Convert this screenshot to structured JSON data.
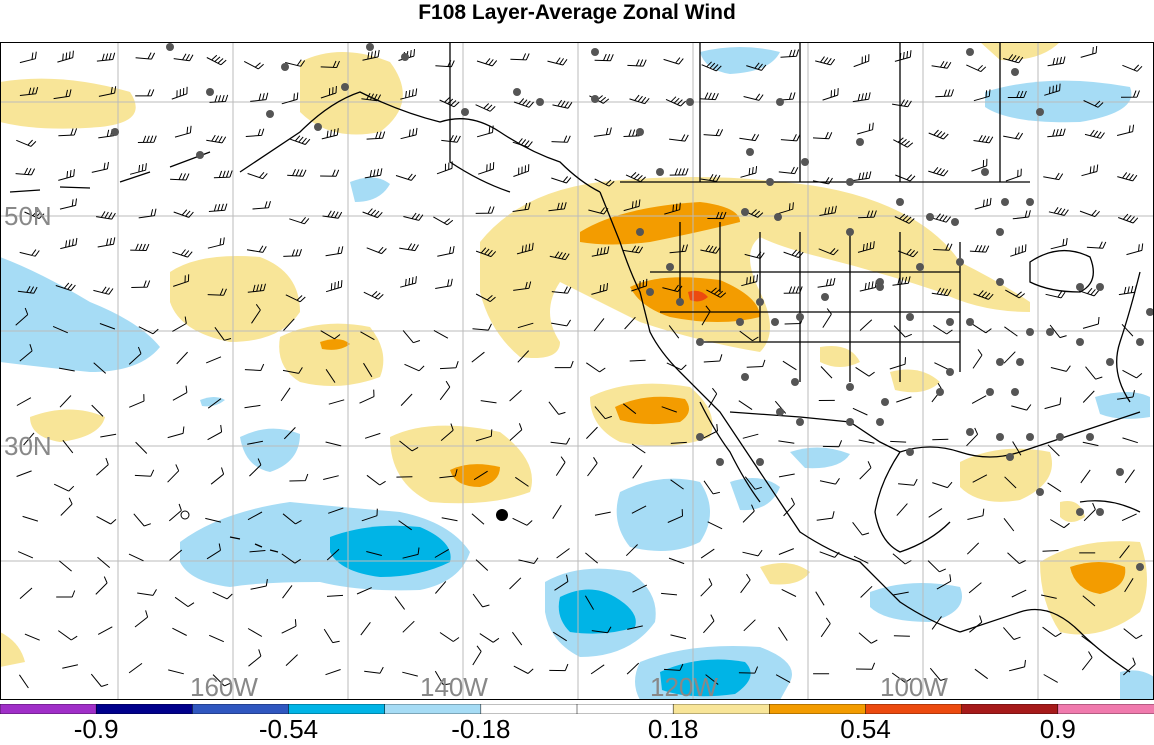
{
  "title": "F108 Layer-Average Zonal Wind",
  "map": {
    "lat_labels": [
      {
        "text": "50N",
        "lat": 50
      },
      {
        "text": "30N",
        "lat": 30
      }
    ],
    "lon_labels": [
      {
        "text": "160W",
        "lon": -160
      },
      {
        "text": "140W",
        "lon": -140
      },
      {
        "text": "120W",
        "lon": -120
      },
      {
        "text": "100W",
        "lon": -100
      }
    ]
  },
  "colorbar": {
    "colors": [
      "#a02fc8",
      "#00008c",
      "#3057c0",
      "#00b4e6",
      "#a6dcf5",
      "#ffffff",
      "#ffffff",
      "#f8e598",
      "#f39c00",
      "#ec4a0f",
      "#a61a1a",
      "#f07aad"
    ],
    "labels": [
      {
        "text": "-0.9",
        "boundary": 1
      },
      {
        "text": "-0.54",
        "boundary": 3
      },
      {
        "text": "-0.18",
        "boundary": 5
      },
      {
        "text": "0.18",
        "boundary": 7
      },
      {
        "text": "0.54",
        "boundary": 9
      },
      {
        "text": "0.9",
        "boundary": 11
      }
    ]
  },
  "colors": {
    "pos_light": "#f8e598",
    "pos_mid": "#f39c00",
    "pos_strong": "#ec4a0f",
    "neg_light": "#a6dcf5",
    "neg_mid": "#00b4e6",
    "station": "#555555",
    "grid": "#bbbbbb",
    "coast": "#000000"
  }
}
